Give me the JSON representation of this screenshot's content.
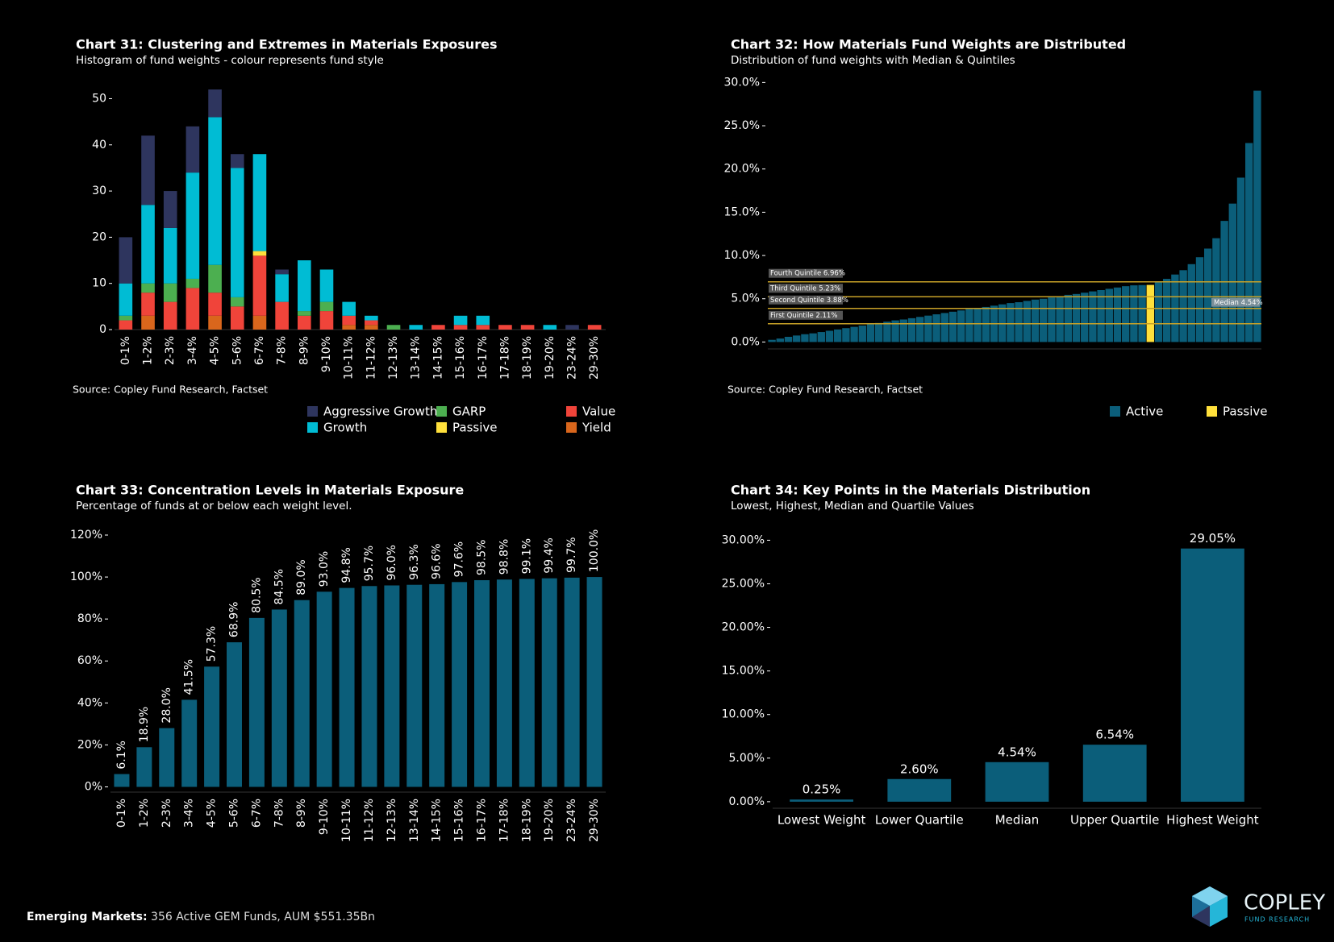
{
  "chart_data": [
    {
      "type": "bar",
      "stacked": true,
      "title": "Chart 31:  Clustering and Extremes in Materials Exposures",
      "subtitle": "Histogram of fund weights - colour represents fund style",
      "source": "Source:  Copley Fund Research, Factset",
      "categories": [
        "0-1%",
        "1-2%",
        "2-3%",
        "3-4%",
        "4-5%",
        "5-6%",
        "6-7%",
        "7-8%",
        "8-9%",
        "9-10%",
        "10-11%",
        "11-12%",
        "12-13%",
        "13-14%",
        "14-15%",
        "15-16%",
        "16-17%",
        "17-18%",
        "18-19%",
        "19-20%",
        "23-24%",
        "29-30%"
      ],
      "series": [
        {
          "name": "Yield",
          "color": "#d9661c",
          "values": [
            0,
            3,
            0,
            0,
            3,
            0,
            3,
            0,
            0,
            0,
            1,
            1,
            0,
            0,
            0,
            0,
            0,
            0,
            0,
            0,
            0,
            0
          ]
        },
        {
          "name": "Value",
          "color": "#f0443a",
          "values": [
            2,
            5,
            6,
            9,
            5,
            5,
            13,
            6,
            3,
            4,
            2,
            1,
            0,
            0,
            1,
            1,
            1,
            1,
            1,
            0,
            0,
            1
          ]
        },
        {
          "name": "GARP",
          "color": "#4caf50",
          "values": [
            1,
            2,
            4,
            2,
            6,
            2,
            0,
            0,
            1,
            2,
            0,
            0,
            1,
            0,
            0,
            0,
            0,
            0,
            0,
            0,
            0,
            0
          ]
        },
        {
          "name": "Passive",
          "color": "#ffe03b",
          "values": [
            0,
            0,
            0,
            0,
            0,
            0,
            1,
            0,
            0,
            0,
            0,
            0,
            0,
            0,
            0,
            0,
            0,
            0,
            0,
            0,
            0,
            0
          ]
        },
        {
          "name": "Growth",
          "color": "#00bcd4",
          "values": [
            7,
            17,
            12,
            23,
            32,
            28,
            21,
            6,
            11,
            7,
            3,
            1,
            0,
            1,
            0,
            2,
            2,
            0,
            0,
            1,
            0,
            0
          ]
        },
        {
          "name": "Aggressive Growth",
          "color": "#2e355e",
          "values": [
            10,
            15,
            8,
            10,
            6,
            3,
            0,
            1,
            0,
            0,
            0,
            0,
            0,
            0,
            0,
            0,
            0,
            0,
            0,
            0,
            1,
            0
          ]
        }
      ],
      "ylim": [
        0,
        52
      ],
      "yticks": [
        0,
        10,
        20,
        30,
        40,
        50
      ]
    },
    {
      "type": "bar",
      "title": "Chart 32:  How Materials Fund Weights are Distributed",
      "subtitle": "Distribution of fund weights with Median & Quintiles",
      "source": "Source:  Copley Fund Research, Factset",
      "series": [
        {
          "name": "Active",
          "color": "#0b5e7a",
          "values": [
            0.25,
            0.4,
            0.6,
            0.75,
            0.9,
            1.0,
            1.15,
            1.3,
            1.45,
            1.6,
            1.75,
            1.9,
            2.05,
            2.2,
            2.35,
            2.5,
            2.6,
            2.75,
            2.9,
            3.05,
            3.2,
            3.35,
            3.5,
            3.65,
            3.8,
            3.9,
            4.05,
            4.2,
            4.35,
            4.5,
            4.6,
            4.75,
            4.9,
            5.0,
            5.15,
            5.3,
            5.45,
            5.55,
            5.7,
            5.85,
            6.0,
            6.15,
            6.3,
            6.45,
            6.55,
            6.58,
            null,
            6.9,
            7.3,
            7.8,
            8.3,
            9.0,
            9.8,
            10.8,
            12.0,
            14.0,
            16.0,
            19.0,
            23.0,
            29.05
          ]
        },
        {
          "name": "Passive",
          "color": "#ffe03b",
          "values": [
            null,
            null,
            null,
            null,
            null,
            null,
            null,
            null,
            null,
            null,
            null,
            null,
            null,
            null,
            null,
            null,
            null,
            null,
            null,
            null,
            null,
            null,
            null,
            null,
            null,
            null,
            null,
            null,
            null,
            null,
            null,
            null,
            null,
            null,
            null,
            null,
            null,
            null,
            null,
            null,
            null,
            null,
            null,
            null,
            null,
            null,
            6.6,
            null,
            null,
            null,
            null,
            null,
            null,
            null,
            null,
            null,
            null,
            null,
            null,
            null
          ]
        }
      ],
      "annotations": [
        {
          "label": "Fourth Quintile 6.96%",
          "value": 6.96
        },
        {
          "label": "Third Quintile 5.23%",
          "value": 5.23
        },
        {
          "label": "Second Quintile 3.88%",
          "value": 3.88
        },
        {
          "label": "First Quintile 2.11%",
          "value": 2.11
        }
      ],
      "median": {
        "label": "Median 4.54%",
        "value": 4.54
      },
      "ylim": [
        -0.8,
        30.5
      ],
      "yticks": [
        {
          "value": 0,
          "label": "0.0%"
        },
        {
          "value": 5,
          "label": "5.0%"
        },
        {
          "value": 10,
          "label": "10.0%"
        },
        {
          "value": 15,
          "label": "15.0%"
        },
        {
          "value": 20,
          "label": "20.0%"
        },
        {
          "value": 25,
          "label": "25.0%"
        },
        {
          "value": 30,
          "label": "30.0%"
        }
      ]
    },
    {
      "type": "bar",
      "title": "Chart 33:  Concentration Levels in Materials Exposure",
      "subtitle": "Percentage of funds at or below each weight level.",
      "color": "#0b5e7a",
      "categories": [
        "0-1%",
        "1-2%",
        "2-3%",
        "3-4%",
        "4-5%",
        "5-6%",
        "6-7%",
        "7-8%",
        "8-9%",
        "9-10%",
        "10-11%",
        "11-12%",
        "12-13%",
        "13-14%",
        "14-15%",
        "15-16%",
        "16-17%",
        "17-18%",
        "18-19%",
        "19-20%",
        "23-24%",
        "29-30%"
      ],
      "values": [
        6.1,
        18.9,
        28.0,
        41.5,
        57.3,
        68.9,
        80.5,
        84.5,
        89.0,
        93.0,
        94.8,
        95.7,
        96.0,
        96.3,
        96.6,
        97.6,
        98.5,
        98.8,
        99.1,
        99.4,
        99.7,
        100.0
      ],
      "value_labels": [
        "6.1%",
        "18.9%",
        "28.0%",
        "41.5%",
        "57.3%",
        "68.9%",
        "80.5%",
        "84.5%",
        "89.0%",
        "93.0%",
        "94.8%",
        "95.7%",
        "96.0%",
        "96.3%",
        "96.6%",
        "97.6%",
        "98.5%",
        "98.8%",
        "99.1%",
        "99.4%",
        "99.7%",
        "100.0%"
      ],
      "ylim": [
        -2.5,
        120
      ],
      "yticks": [
        {
          "value": 0,
          "label": "0%"
        },
        {
          "value": 20,
          "label": "20%"
        },
        {
          "value": 40,
          "label": "40%"
        },
        {
          "value": 60,
          "label": "60%"
        },
        {
          "value": 80,
          "label": "80%"
        },
        {
          "value": 100,
          "label": "100%"
        },
        {
          "value": 120,
          "label": "120%"
        }
      ]
    },
    {
      "type": "bar",
      "title": "Chart 34:  Key Points in the Materials Distribution",
      "subtitle": "Lowest, Highest, Median and Quartile Values",
      "color": "#0b5e7a",
      "categories": [
        "Lowest Weight",
        "Lower Quartile",
        "Median",
        "Upper Quartile",
        "Highest Weight"
      ],
      "values": [
        0.25,
        2.6,
        4.54,
        6.54,
        29.05
      ],
      "value_labels": [
        "0.25%",
        "2.60%",
        "4.54%",
        "6.54%",
        "29.05%"
      ],
      "ylim": [
        -0.75,
        30.5
      ],
      "yticks": [
        {
          "value": 0,
          "label": "0.00%"
        },
        {
          "value": 5,
          "label": "5.00%"
        },
        {
          "value": 10,
          "label": "10.00%"
        },
        {
          "value": 15,
          "label": "15.00%"
        },
        {
          "value": 20,
          "label": "20.00%"
        },
        {
          "value": 25,
          "label": "25.00%"
        },
        {
          "value": 30,
          "label": "30.00%"
        }
      ]
    }
  ],
  "footer": {
    "label": "Emerging Markets:",
    "text": "356 Active GEM Funds, AUM $551.35Bn"
  },
  "logo": {
    "name": "COPLEY",
    "tagline": "FUND RESEARCH"
  }
}
